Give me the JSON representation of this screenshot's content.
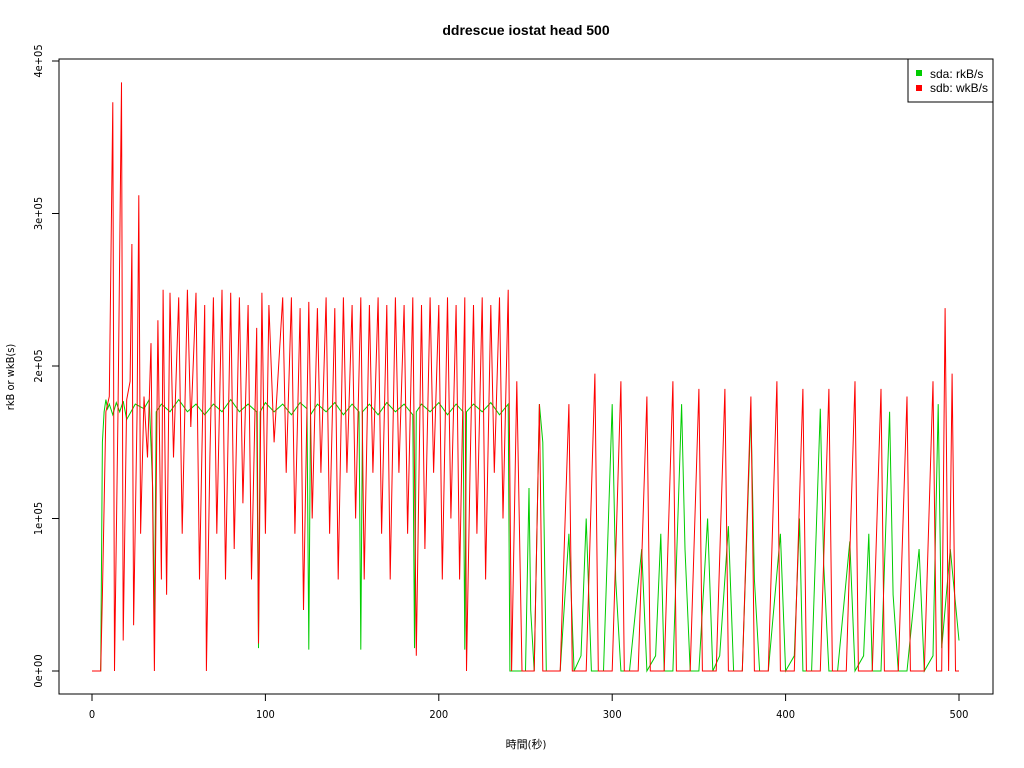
{
  "chart_data": {
    "type": "line",
    "title": "ddrescue iostat head 500",
    "xlabel": "時間(秒)",
    "ylabel": "rkB or wkB(s)",
    "xlim": [
      0,
      500
    ],
    "ylim": [
      0,
      400000
    ],
    "x_ticks": [
      0,
      100,
      200,
      300,
      400,
      500
    ],
    "x_tick_labels": [
      "0",
      "100",
      "200",
      "300",
      "400",
      "500"
    ],
    "y_ticks": [
      0,
      100000,
      200000,
      300000,
      400000
    ],
    "y_tick_labels": [
      "0e+00",
      "1e+05",
      "2e+05",
      "3e+05",
      "4e+05"
    ],
    "grid": false,
    "legend_position": "top-right",
    "series": [
      {
        "name": "sda: rkB/s",
        "color": "#00cc00",
        "points": [
          [
            0,
            0
          ],
          [
            5,
            0
          ],
          [
            6,
            150000
          ],
          [
            7,
            170000
          ],
          [
            8,
            178000
          ],
          [
            9,
            172000
          ],
          [
            10,
            175000
          ],
          [
            12,
            168000
          ],
          [
            14,
            176000
          ],
          [
            16,
            170000
          ],
          [
            18,
            177000
          ],
          [
            20,
            165000
          ],
          [
            25,
            175000
          ],
          [
            30,
            172000
          ],
          [
            33,
            178000
          ],
          [
            35,
            120000
          ],
          [
            36,
            27000
          ],
          [
            37,
            170000
          ],
          [
            40,
            175000
          ],
          [
            45,
            170000
          ],
          [
            50,
            178000
          ],
          [
            55,
            170000
          ],
          [
            60,
            175000
          ],
          [
            65,
            168000
          ],
          [
            70,
            175000
          ],
          [
            75,
            170000
          ],
          [
            80,
            178000
          ],
          [
            85,
            170000
          ],
          [
            90,
            175000
          ],
          [
            95,
            170000
          ],
          [
            96,
            15000
          ],
          [
            97,
            170000
          ],
          [
            100,
            176000
          ],
          [
            105,
            170000
          ],
          [
            110,
            175000
          ],
          [
            115,
            168000
          ],
          [
            120,
            176000
          ],
          [
            124,
            172000
          ],
          [
            125,
            14000
          ],
          [
            126,
            168000
          ],
          [
            130,
            175000
          ],
          [
            135,
            170000
          ],
          [
            140,
            176000
          ],
          [
            145,
            168000
          ],
          [
            150,
            175000
          ],
          [
            154,
            170000
          ],
          [
            155,
            14000
          ],
          [
            156,
            170000
          ],
          [
            160,
            175000
          ],
          [
            165,
            168000
          ],
          [
            170,
            176000
          ],
          [
            175,
            170000
          ],
          [
            180,
            175000
          ],
          [
            185,
            168000
          ],
          [
            186,
            15000
          ],
          [
            187,
            170000
          ],
          [
            190,
            175000
          ],
          [
            195,
            170000
          ],
          [
            200,
            176000
          ],
          [
            205,
            168000
          ],
          [
            210,
            175000
          ],
          [
            214,
            170000
          ],
          [
            215,
            14000
          ],
          [
            216,
            170000
          ],
          [
            220,
            175000
          ],
          [
            225,
            170000
          ],
          [
            230,
            176000
          ],
          [
            235,
            168000
          ],
          [
            240,
            175000
          ],
          [
            241,
            0
          ],
          [
            250,
            0
          ],
          [
            252,
            120000
          ],
          [
            253,
            40000
          ],
          [
            255,
            0
          ],
          [
            258,
            175000
          ],
          [
            260,
            150000
          ],
          [
            262,
            0
          ],
          [
            270,
            0
          ],
          [
            275,
            90000
          ],
          [
            278,
            0
          ],
          [
            282,
            10000
          ],
          [
            285,
            100000
          ],
          [
            288,
            0
          ],
          [
            295,
            0
          ],
          [
            300,
            175000
          ],
          [
            302,
            60000
          ],
          [
            305,
            0
          ],
          [
            310,
            0
          ],
          [
            317,
            80000
          ],
          [
            320,
            0
          ],
          [
            325,
            10000
          ],
          [
            328,
            90000
          ],
          [
            330,
            0
          ],
          [
            335,
            0
          ],
          [
            340,
            175000
          ],
          [
            342,
            80000
          ],
          [
            345,
            0
          ],
          [
            350,
            0
          ],
          [
            355,
            100000
          ],
          [
            358,
            0
          ],
          [
            362,
            10000
          ],
          [
            367,
            95000
          ],
          [
            370,
            0
          ],
          [
            375,
            0
          ],
          [
            380,
            170000
          ],
          [
            382,
            60000
          ],
          [
            385,
            0
          ],
          [
            390,
            0
          ],
          [
            397,
            90000
          ],
          [
            400,
            0
          ],
          [
            405,
            10000
          ],
          [
            408,
            100000
          ],
          [
            410,
            0
          ],
          [
            415,
            0
          ],
          [
            420,
            172000
          ],
          [
            422,
            70000
          ],
          [
            425,
            0
          ],
          [
            430,
            0
          ],
          [
            437,
            85000
          ],
          [
            440,
            0
          ],
          [
            445,
            10000
          ],
          [
            448,
            90000
          ],
          [
            450,
            0
          ],
          [
            455,
            0
          ],
          [
            460,
            170000
          ],
          [
            462,
            50000
          ],
          [
            465,
            0
          ],
          [
            470,
            0
          ],
          [
            477,
            80000
          ],
          [
            480,
            0
          ],
          [
            485,
            10000
          ],
          [
            488,
            175000
          ],
          [
            490,
            15000
          ],
          [
            495,
            80000
          ],
          [
            500,
            20000
          ]
        ]
      },
      {
        "name": "sdb: wkB/s",
        "color": "#ff0000",
        "points": [
          [
            0,
            0
          ],
          [
            5,
            0
          ],
          [
            6,
            50000
          ],
          [
            8,
            170000
          ],
          [
            10,
            180000
          ],
          [
            12,
            373000
          ],
          [
            13,
            0
          ],
          [
            15,
            170000
          ],
          [
            17,
            386000
          ],
          [
            18,
            20000
          ],
          [
            20,
            178000
          ],
          [
            22,
            190000
          ],
          [
            23,
            280000
          ],
          [
            24,
            30000
          ],
          [
            26,
            170000
          ],
          [
            27,
            312000
          ],
          [
            28,
            90000
          ],
          [
            30,
            180000
          ],
          [
            32,
            140000
          ],
          [
            34,
            215000
          ],
          [
            36,
            0
          ],
          [
            38,
            230000
          ],
          [
            40,
            60000
          ],
          [
            41,
            250000
          ],
          [
            43,
            50000
          ],
          [
            45,
            248000
          ],
          [
            47,
            140000
          ],
          [
            50,
            245000
          ],
          [
            52,
            90000
          ],
          [
            55,
            250000
          ],
          [
            57,
            160000
          ],
          [
            60,
            248000
          ],
          [
            62,
            60000
          ],
          [
            65,
            240000
          ],
          [
            66,
            0
          ],
          [
            68,
            140000
          ],
          [
            70,
            245000
          ],
          [
            72,
            90000
          ],
          [
            75,
            250000
          ],
          [
            77,
            60000
          ],
          [
            80,
            248000
          ],
          [
            82,
            80000
          ],
          [
            85,
            245000
          ],
          [
            87,
            110000
          ],
          [
            90,
            240000
          ],
          [
            92,
            60000
          ],
          [
            95,
            225000
          ],
          [
            96,
            18000
          ],
          [
            98,
            248000
          ],
          [
            100,
            90000
          ],
          [
            102,
            240000
          ],
          [
            105,
            150000
          ],
          [
            110,
            245000
          ],
          [
            112,
            130000
          ],
          [
            115,
            245000
          ],
          [
            117,
            90000
          ],
          [
            120,
            238000
          ],
          [
            122,
            40000
          ],
          [
            125,
            242000
          ],
          [
            127,
            100000
          ],
          [
            130,
            238000
          ],
          [
            132,
            130000
          ],
          [
            135,
            245000
          ],
          [
            137,
            90000
          ],
          [
            140,
            238000
          ],
          [
            142,
            60000
          ],
          [
            145,
            245000
          ],
          [
            147,
            130000
          ],
          [
            150,
            240000
          ],
          [
            152,
            100000
          ],
          [
            155,
            245000
          ],
          [
            157,
            60000
          ],
          [
            160,
            240000
          ],
          [
            162,
            130000
          ],
          [
            165,
            245000
          ],
          [
            167,
            90000
          ],
          [
            170,
            240000
          ],
          [
            172,
            60000
          ],
          [
            175,
            245000
          ],
          [
            177,
            130000
          ],
          [
            180,
            240000
          ],
          [
            182,
            90000
          ],
          [
            185,
            245000
          ],
          [
            187,
            10000
          ],
          [
            190,
            240000
          ],
          [
            192,
            80000
          ],
          [
            195,
            245000
          ],
          [
            197,
            130000
          ],
          [
            200,
            240000
          ],
          [
            202,
            60000
          ],
          [
            205,
            245000
          ],
          [
            207,
            100000
          ],
          [
            210,
            240000
          ],
          [
            212,
            60000
          ],
          [
            215,
            245000
          ],
          [
            216,
            0
          ],
          [
            218,
            130000
          ],
          [
            220,
            240000
          ],
          [
            222,
            90000
          ],
          [
            225,
            245000
          ],
          [
            227,
            60000
          ],
          [
            230,
            240000
          ],
          [
            232,
            130000
          ],
          [
            235,
            245000
          ],
          [
            237,
            100000
          ],
          [
            240,
            250000
          ],
          [
            242,
            0
          ],
          [
            245,
            190000
          ],
          [
            248,
            0
          ],
          [
            255,
            0
          ],
          [
            258,
            175000
          ],
          [
            260,
            0
          ],
          [
            270,
            0
          ],
          [
            275,
            175000
          ],
          [
            277,
            0
          ],
          [
            285,
            0
          ],
          [
            290,
            195000
          ],
          [
            292,
            0
          ],
          [
            300,
            0
          ],
          [
            305,
            190000
          ],
          [
            307,
            0
          ],
          [
            315,
            0
          ],
          [
            320,
            180000
          ],
          [
            322,
            0
          ],
          [
            330,
            0
          ],
          [
            335,
            190000
          ],
          [
            337,
            0
          ],
          [
            345,
            0
          ],
          [
            350,
            185000
          ],
          [
            352,
            0
          ],
          [
            360,
            0
          ],
          [
            365,
            185000
          ],
          [
            367,
            0
          ],
          [
            375,
            0
          ],
          [
            380,
            180000
          ],
          [
            382,
            0
          ],
          [
            390,
            0
          ],
          [
            395,
            190000
          ],
          [
            397,
            0
          ],
          [
            405,
            0
          ],
          [
            410,
            185000
          ],
          [
            412,
            0
          ],
          [
            420,
            0
          ],
          [
            425,
            185000
          ],
          [
            427,
            0
          ],
          [
            435,
            0
          ],
          [
            440,
            190000
          ],
          [
            442,
            0
          ],
          [
            450,
            0
          ],
          [
            455,
            185000
          ],
          [
            457,
            0
          ],
          [
            465,
            0
          ],
          [
            470,
            180000
          ],
          [
            472,
            0
          ],
          [
            480,
            0
          ],
          [
            485,
            190000
          ],
          [
            487,
            0
          ],
          [
            490,
            0
          ],
          [
            492,
            238000
          ],
          [
            494,
            0
          ],
          [
            496,
            195000
          ],
          [
            498,
            0
          ],
          [
            500,
            0
          ]
        ]
      }
    ]
  }
}
